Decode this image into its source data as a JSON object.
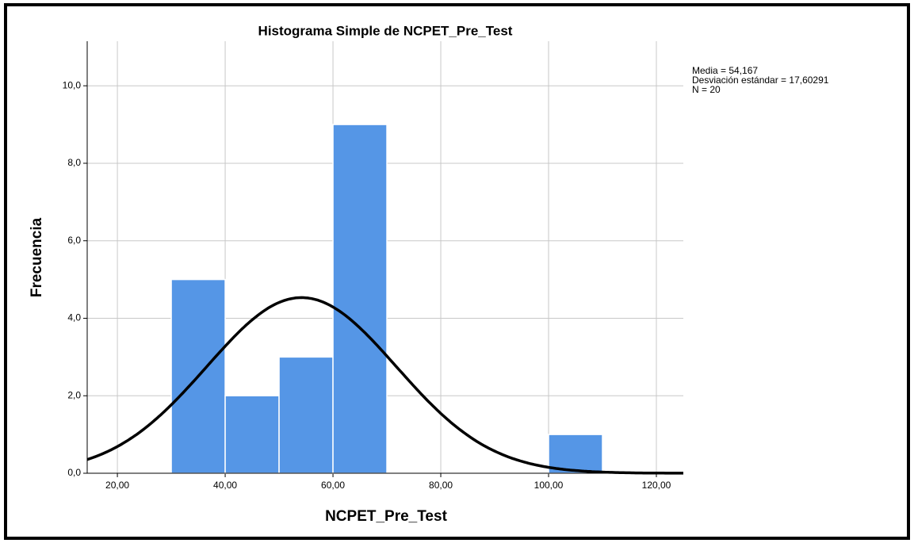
{
  "chart_data": {
    "type": "histogram",
    "title": "Histograma Simple de NCPET_Pre_Test",
    "x_label": "NCPET_Pre_Test",
    "y_label": "Frecuencia",
    "bins": [
      30,
      40,
      50,
      60,
      70,
      80,
      90,
      100,
      110
    ],
    "values": [
      5,
      2,
      3,
      9,
      0,
      0,
      0,
      1
    ],
    "color": "#5596e6",
    "xlim": [
      14.4,
      125
    ],
    "ylim": [
      0,
      11.15
    ],
    "xticks": [
      {
        "value": 20,
        "label": "20,00"
      },
      {
        "value": 40,
        "label": "40,00"
      },
      {
        "value": 60,
        "label": "60,00"
      },
      {
        "value": 80,
        "label": "80,00"
      },
      {
        "value": 100,
        "label": "100,00"
      },
      {
        "value": 120,
        "label": "120,00"
      }
    ],
    "yticks": [
      {
        "value": 0,
        "label": "0,0"
      },
      {
        "value": 2,
        "label": "2,0"
      },
      {
        "value": 4,
        "label": "4,0"
      },
      {
        "value": 6,
        "label": "6,0"
      },
      {
        "value": 8,
        "label": "8,0"
      },
      {
        "value": 10,
        "label": "10,0"
      }
    ],
    "grid": true,
    "stats": {
      "mean": {
        "value": 54.167,
        "label": "Media = 54,167"
      },
      "sd": {
        "value": 17.60291,
        "label": "Desviación estándar = 17,60291"
      },
      "n": {
        "value": 20,
        "label": "N = 20"
      }
    }
  }
}
